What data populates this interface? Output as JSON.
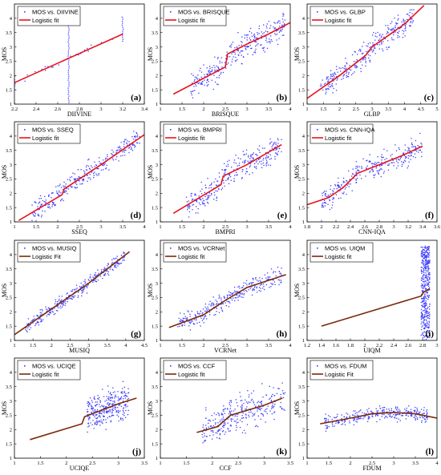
{
  "figure": {
    "colors": {
      "scatter": "#3d3dff",
      "fit_red": "#e8141c",
      "fit_brown": "#7a2a0a",
      "axis": "#000000"
    }
  },
  "chart_data": [
    {
      "panel_label": "(a)",
      "type": "scatter",
      "xlabel": "DIIVINE",
      "ylabel": "MOS",
      "xlim": [
        2.2,
        3.4
      ],
      "ylim": [
        1,
        4.5
      ],
      "xticks": [
        "2.2",
        "2.4",
        "2.6",
        "2.8",
        "3",
        "3.2",
        "3.4"
      ],
      "xtick_vals": [
        2.2,
        2.4,
        2.6,
        2.8,
        3.0,
        3.2,
        3.4
      ],
      "yticks": [
        "1",
        "1.5",
        "2",
        "2.5",
        "3",
        "3.5",
        "4"
      ],
      "ytick_vals": [
        1,
        1.5,
        2,
        2.5,
        3,
        3.5,
        4
      ],
      "series": [
        {
          "name": "MOS vs. DIIVINE",
          "kind": "scatter",
          "shape": "columns",
          "columns": [
            {
              "x": 2.2,
              "y": [
                1.5,
                2.0
              ]
            },
            {
              "x": 2.7,
              "y": [
                1.0,
                4.0
              ]
            },
            {
              "x": 3.2,
              "y": [
                3.2,
                4.1
              ]
            }
          ]
        },
        {
          "name": "Logistic fit",
          "kind": "line",
          "color": "red",
          "x": [
            2.2,
            3.2
          ],
          "y": [
            1.75,
            3.45
          ]
        }
      ]
    },
    {
      "panel_label": "(b)",
      "type": "scatter",
      "xlabel": "BRISQUE",
      "ylabel": "MOS",
      "xlim": [
        1,
        4
      ],
      "ylim": [
        1,
        4.5
      ],
      "xticks": [
        "1",
        "1.5",
        "2",
        "2.5",
        "3",
        "3.5",
        "4"
      ],
      "xtick_vals": [
        1,
        1.5,
        2,
        2.5,
        3,
        3.5,
        4
      ],
      "yticks": [
        "1",
        "1.5",
        "2",
        "2.5",
        "3",
        "3.5",
        "4"
      ],
      "ytick_vals": [
        1,
        1.5,
        2,
        2.5,
        3,
        3.5,
        4
      ],
      "series": [
        {
          "name": "MOS vs. BRISQUE",
          "kind": "scatter",
          "cloud": {
            "x": [
              1.7,
              3.9
            ],
            "spread": 0.7
          }
        },
        {
          "name": "Logistic fit",
          "kind": "line",
          "color": "red",
          "x": [
            1.3,
            2.5,
            2.55,
            3.0,
            3.5,
            4.0
          ],
          "y": [
            1.35,
            2.3,
            2.75,
            3.1,
            3.45,
            3.85
          ]
        }
      ]
    },
    {
      "panel_label": "(c)",
      "type": "scatter",
      "xlabel": "GLBP",
      "ylabel": "MOS",
      "xlim": [
        1,
        5
      ],
      "ylim": [
        1,
        4.5
      ],
      "xticks": [
        "1",
        "1.5",
        "2",
        "2.5",
        "3",
        "3.5",
        "4",
        "4.5",
        "5"
      ],
      "xtick_vals": [
        1,
        1.5,
        2,
        2.5,
        3,
        3.5,
        4,
        4.5,
        5
      ],
      "yticks": [
        "1",
        "1.5",
        "2",
        "2.5",
        "3",
        "3.5",
        "4"
      ],
      "ytick_vals": [
        1,
        1.5,
        2,
        2.5,
        3,
        3.5,
        4
      ],
      "series": [
        {
          "name": "MOS vs. GLBP",
          "kind": "scatter",
          "cloud": {
            "x": [
              1.4,
              4.3
            ],
            "spread": 0.6
          }
        },
        {
          "name": "Logistic fit",
          "kind": "line",
          "color": "red",
          "x": [
            1.0,
            2.0,
            2.8,
            3.0,
            4.0,
            4.6
          ],
          "y": [
            1.2,
            2.0,
            2.7,
            3.0,
            3.8,
            4.45
          ]
        }
      ]
    },
    {
      "panel_label": "(d)",
      "type": "scatter",
      "xlabel": "SSEQ",
      "ylabel": "MOS",
      "xlim": [
        1,
        4
      ],
      "ylim": [
        1,
        4.5
      ],
      "xticks": [
        "1",
        "1.5",
        "2",
        "2.5",
        "3",
        "3.5",
        "4"
      ],
      "xtick_vals": [
        1,
        1.5,
        2,
        2.5,
        3,
        3.5,
        4
      ],
      "yticks": [
        "1",
        "1.5",
        "2",
        "2.5",
        "3",
        "3.5",
        "4"
      ],
      "ytick_vals": [
        1,
        1.5,
        2,
        2.5,
        3,
        3.5,
        4
      ],
      "series": [
        {
          "name": "MOS vs. SSEQ",
          "kind": "scatter",
          "cloud": {
            "x": [
              1.4,
              3.9
            ],
            "spread": 0.55
          }
        },
        {
          "name": "Logistic fit",
          "kind": "line",
          "color": "red",
          "x": [
            1.1,
            2.1,
            2.15,
            3.0,
            4.0
          ],
          "y": [
            1.05,
            1.95,
            2.15,
            3.0,
            4.05
          ]
        }
      ]
    },
    {
      "panel_label": "(e)",
      "type": "scatter",
      "xlabel": "BMPRI",
      "ylabel": "MOS",
      "xlim": [
        1,
        4
      ],
      "ylim": [
        1,
        4.5
      ],
      "xticks": [
        "1",
        "1.5",
        "2",
        "2.5",
        "3",
        "3.5",
        "4"
      ],
      "xtick_vals": [
        1,
        1.5,
        2,
        2.5,
        3,
        3.5,
        4
      ],
      "yticks": [
        "1",
        "1.5",
        "2",
        "2.5",
        "3",
        "3.5",
        "4"
      ],
      "ytick_vals": [
        1,
        1.5,
        2,
        2.5,
        3,
        3.5,
        4
      ],
      "series": [
        {
          "name": "MOS vs. BMPRI",
          "kind": "scatter",
          "cloud": {
            "x": [
              1.6,
              3.8
            ],
            "spread": 0.7
          }
        },
        {
          "name": "Logistic fit",
          "kind": "line",
          "color": "red",
          "x": [
            1.3,
            2.4,
            2.45,
            3.0,
            3.8
          ],
          "y": [
            1.3,
            2.3,
            2.6,
            3.0,
            3.7
          ]
        }
      ]
    },
    {
      "panel_label": "(f)",
      "type": "scatter",
      "xlabel": "CNN-IQA",
      "ylabel": "MOS",
      "xlim": [
        1.8,
        3.6
      ],
      "ylim": [
        1,
        4.5
      ],
      "xticks": [
        "1.8",
        "2",
        "2.2",
        "2.4",
        "2.6",
        "2.8",
        "3",
        "3.2",
        "3.4",
        "3.6"
      ],
      "xtick_vals": [
        1.8,
        2.0,
        2.2,
        2.4,
        2.6,
        2.8,
        3.0,
        3.2,
        3.4,
        3.6
      ],
      "yticks": [
        "1",
        "1.5",
        "2",
        "2.5",
        "3",
        "3.5",
        "4"
      ],
      "ytick_vals": [
        1,
        1.5,
        2,
        2.5,
        3,
        3.5,
        4
      ],
      "series": [
        {
          "name": "MOS vs. CNN-IQA",
          "kind": "scatter",
          "cloud": {
            "x": [
              2.0,
              3.4
            ],
            "spread": 0.6
          }
        },
        {
          "name": "Logistic fit",
          "kind": "line",
          "color": "red",
          "x": [
            1.8,
            2.1,
            2.3,
            2.5,
            2.8,
            3.1,
            3.4
          ],
          "y": [
            1.6,
            1.85,
            2.2,
            2.7,
            3.0,
            3.3,
            3.65
          ]
        }
      ]
    },
    {
      "panel_label": "(g)",
      "type": "scatter",
      "xlabel": "MUSIQ",
      "ylabel": "MOS",
      "xlim": [
        1,
        4.5
      ],
      "ylim": [
        1,
        4.5
      ],
      "xticks": [
        "1",
        "1.5",
        "2",
        "2.5",
        "3",
        "3.5",
        "4",
        "4.5"
      ],
      "xtick_vals": [
        1,
        1.5,
        2,
        2.5,
        3,
        3.5,
        4,
        4.5
      ],
      "yticks": [
        "1",
        "1.5",
        "2",
        "2.5",
        "3",
        "3.5",
        "4"
      ],
      "ytick_vals": [
        1,
        1.5,
        2,
        2.5,
        3,
        3.5,
        4
      ],
      "series": [
        {
          "name": "MOS vs. MUSIQ",
          "kind": "scatter",
          "cloud": {
            "x": [
              1.3,
              4.0
            ],
            "spread": 0.35
          }
        },
        {
          "name": "Logistic Fit",
          "kind": "line",
          "color": "brown",
          "x": [
            1.0,
            2.0,
            3.0,
            4.1
          ],
          "y": [
            1.2,
            2.1,
            3.0,
            4.1
          ]
        }
      ]
    },
    {
      "panel_label": "(h)",
      "type": "scatter",
      "xlabel": "VCRNet",
      "ylabel": "MOS",
      "xlim": [
        1,
        4
      ],
      "ylim": [
        1,
        4.5
      ],
      "xticks": [
        "1",
        "1.5",
        "2",
        "2.5",
        "3",
        "3.5",
        "4"
      ],
      "xtick_vals": [
        1,
        1.5,
        2,
        2.5,
        3,
        3.5,
        4
      ],
      "yticks": [
        "1",
        "1.5",
        "2",
        "2.5",
        "3",
        "3.5",
        "4"
      ],
      "ytick_vals": [
        1,
        1.5,
        2,
        2.5,
        3,
        3.5,
        4
      ],
      "series": [
        {
          "name": "MOS vs. VCRNet",
          "kind": "scatter",
          "cloud": {
            "x": [
              1.4,
              3.8
            ],
            "spread": 0.45
          }
        },
        {
          "name": "Logistic fit",
          "kind": "line",
          "color": "brown",
          "x": [
            1.2,
            2.0,
            2.5,
            3.0,
            3.5,
            3.9
          ],
          "y": [
            1.45,
            1.9,
            2.4,
            2.85,
            3.1,
            3.3
          ]
        }
      ]
    },
    {
      "panel_label": "(i)",
      "type": "scatter",
      "xlabel": "UIQM",
      "ylabel": "MOS",
      "xlim": [
        1.2,
        3.0
      ],
      "ylim": [
        1,
        4.5
      ],
      "xticks": [
        "1.2",
        "1.4",
        "1.6",
        "1.8",
        "2",
        "2.2",
        "2.4",
        "2.6",
        "2.8",
        "3"
      ],
      "xtick_vals": [
        1.2,
        1.4,
        1.6,
        1.8,
        2.0,
        2.2,
        2.4,
        2.6,
        2.8,
        3.0
      ],
      "yticks": [
        "1",
        "1.5",
        "2",
        "2.5",
        "3",
        "3.5",
        "4"
      ],
      "ytick_vals": [
        1,
        1.5,
        2,
        2.5,
        3,
        3.5,
        4
      ],
      "series": [
        {
          "name": "MOS vs. UIQM",
          "kind": "scatter",
          "shape": "band",
          "band": {
            "x": [
              2.78,
              2.9
            ],
            "y": [
              1.0,
              4.3
            ]
          }
        },
        {
          "name": "Logistic fit",
          "kind": "line",
          "color": "brown",
          "x": [
            1.4,
            2.78,
            2.82,
            2.9
          ],
          "y": [
            1.5,
            2.55,
            2.7,
            2.8
          ]
        }
      ]
    },
    {
      "panel_label": "(j)",
      "type": "scatter",
      "xlabel": "UCIQE",
      "ylabel": "MOS",
      "xlim": [
        1,
        3.5
      ],
      "ylim": [
        1,
        4.5
      ],
      "xticks": [
        "1",
        "1.5",
        "2",
        "2.5",
        "3",
        "3.5"
      ],
      "xtick_vals": [
        1,
        1.5,
        2,
        2.5,
        3,
        3.5
      ],
      "yticks": [
        "1",
        "1.5",
        "2",
        "2.5",
        "3",
        "3.5",
        "4"
      ],
      "ytick_vals": [
        1,
        1.5,
        2,
        2.5,
        3,
        3.5,
        4
      ],
      "series": [
        {
          "name": "MOS vs. UCIQE",
          "kind": "scatter",
          "cloud": {
            "x": [
              2.4,
              3.2
            ],
            "spread": 0.9,
            "flat": true
          }
        },
        {
          "name": "Logistic fit",
          "kind": "line",
          "color": "brown",
          "x": [
            1.3,
            2.3,
            2.35,
            3.0,
            3.35
          ],
          "y": [
            1.65,
            2.2,
            2.45,
            2.9,
            3.1
          ]
        }
      ]
    },
    {
      "panel_label": "(k)",
      "type": "scatter",
      "xlabel": "CCF",
      "ylabel": "MOS",
      "xlim": [
        1,
        3.5
      ],
      "ylim": [
        1,
        4.5
      ],
      "xticks": [
        "1",
        "1.5",
        "2",
        "2.5",
        "3",
        "3.5"
      ],
      "xtick_vals": [
        1,
        1.5,
        2,
        2.5,
        3,
        3.5
      ],
      "yticks": [
        "1",
        "1.5",
        "2",
        "2.5",
        "3",
        "3.5",
        "4"
      ],
      "ytick_vals": [
        1,
        1.5,
        2,
        2.5,
        3,
        3.5,
        4
      ],
      "series": [
        {
          "name": "MOS vs. CCF",
          "kind": "scatter",
          "cloud": {
            "x": [
              1.8,
              3.4
            ],
            "spread": 0.9,
            "flat": true
          }
        },
        {
          "name": "Logistic fit",
          "kind": "line",
          "color": "brown",
          "x": [
            1.7,
            2.1,
            2.35,
            3.0,
            3.35
          ],
          "y": [
            1.9,
            2.1,
            2.5,
            2.85,
            3.1
          ]
        }
      ]
    },
    {
      "panel_label": "(l)",
      "type": "scatter",
      "xlabel": "FDUM",
      "ylabel": "MOS",
      "xlim": [
        1,
        4
      ],
      "ylim": [
        1,
        4.5
      ],
      "xticks": [
        "1",
        "1.5",
        "2",
        "2.5",
        "3",
        "3.5",
        "4"
      ],
      "xtick_vals": [
        1,
        1.5,
        2,
        2.5,
        3,
        3.5,
        4
      ],
      "yticks": [
        "1",
        "1.5",
        "2",
        "2.5",
        "3",
        "3.5",
        "4"
      ],
      "ytick_vals": [
        1,
        1.5,
        2,
        2.5,
        3,
        3.5,
        4
      ],
      "series": [
        {
          "name": "MOS vs. FDUM",
          "kind": "scatter",
          "cloud": {
            "x": [
              1.4,
              3.8
            ],
            "spread": 0.35,
            "flat": true
          }
        },
        {
          "name": "Logistic Fit",
          "kind": "line",
          "color": "brown",
          "x": [
            1.3,
            2.0,
            2.5,
            3.0,
            3.5,
            4.0
          ],
          "y": [
            2.2,
            2.4,
            2.55,
            2.6,
            2.55,
            2.4
          ]
        }
      ]
    }
  ]
}
